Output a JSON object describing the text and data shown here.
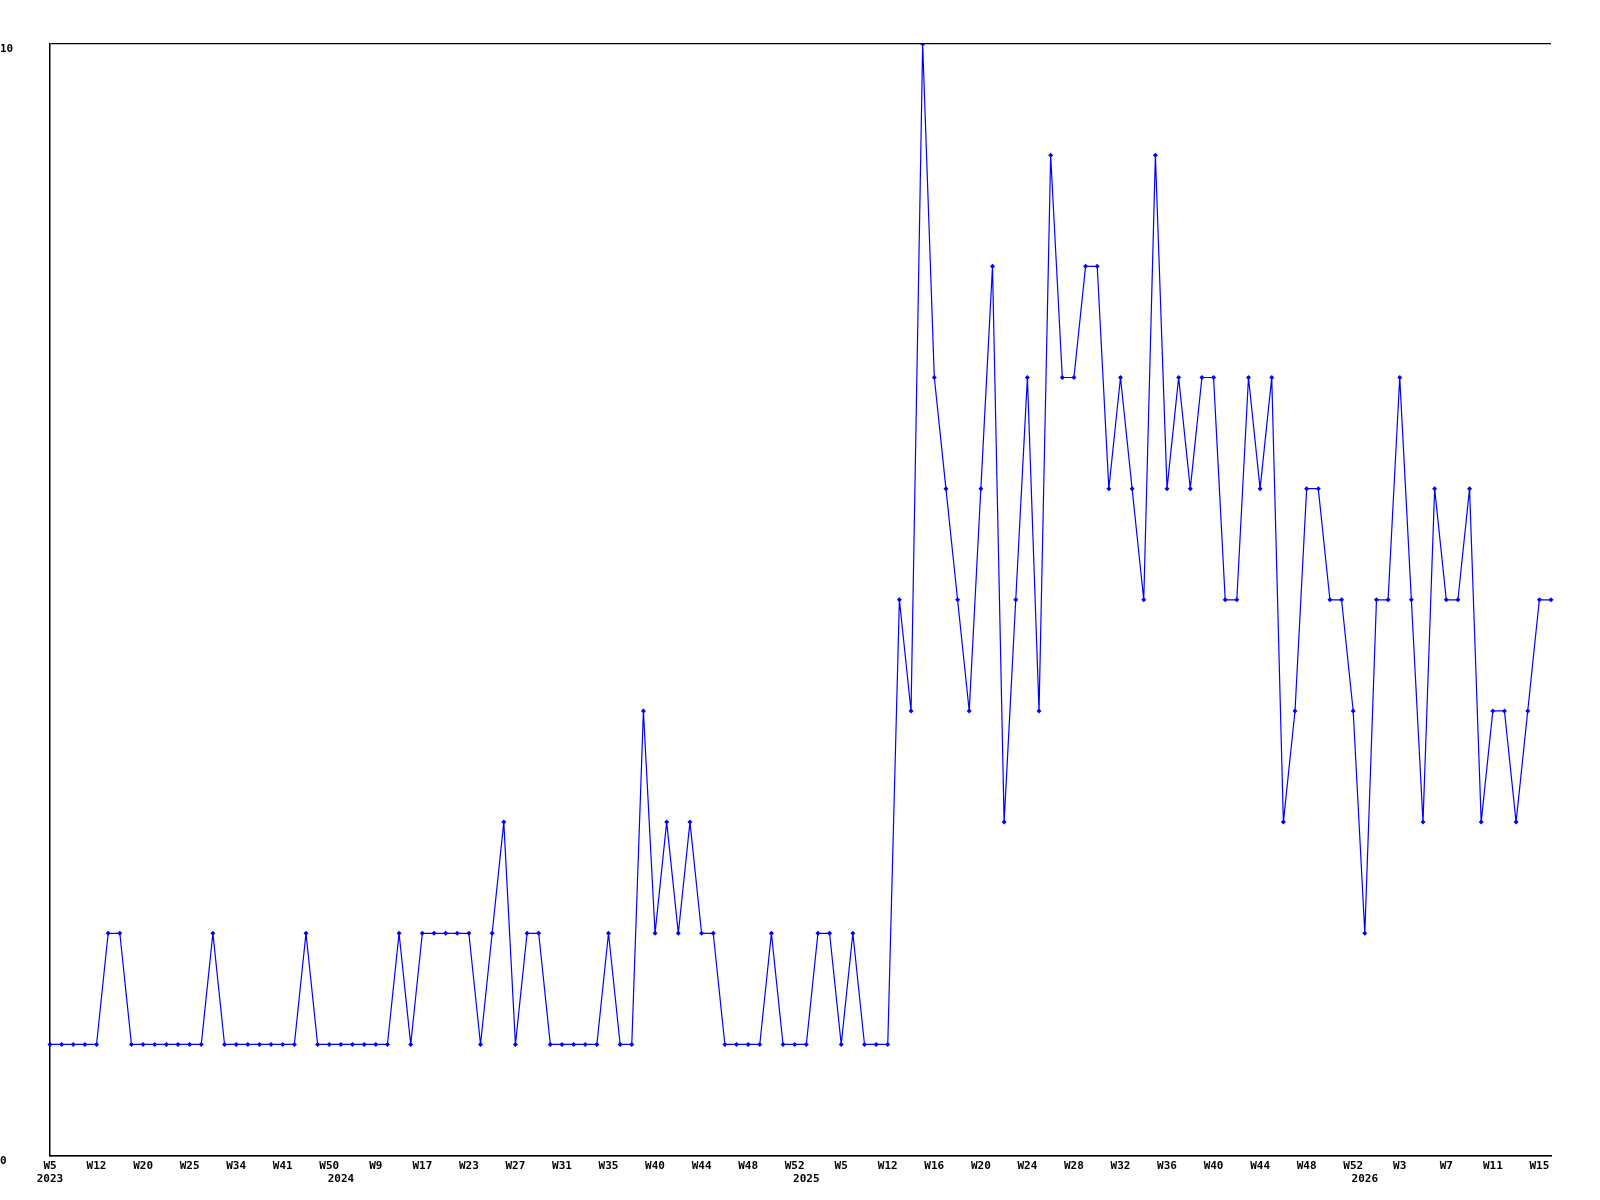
{
  "chart_data": {
    "type": "line",
    "categories": [
      "W5\n2023",
      null,
      null,
      null,
      "W12",
      null,
      null,
      null,
      "W20",
      null,
      null,
      null,
      "W25",
      null,
      null,
      null,
      "W34",
      null,
      null,
      null,
      "W41",
      null,
      null,
      null,
      "W50",
      "\n2024",
      null,
      null,
      "W9",
      null,
      null,
      null,
      "W17",
      null,
      null,
      null,
      "W23",
      null,
      null,
      null,
      "W27",
      null,
      null,
      null,
      "W31",
      null,
      null,
      null,
      "W35",
      null,
      null,
      null,
      "W40",
      null,
      null,
      null,
      "W44",
      null,
      null,
      null,
      "W48",
      null,
      null,
      null,
      "W52",
      "\n2025",
      null,
      null,
      "W5",
      null,
      null,
      null,
      "W12",
      null,
      null,
      null,
      "W16",
      null,
      null,
      null,
      "W20",
      null,
      null,
      null,
      "W24",
      null,
      null,
      null,
      "W28",
      null,
      null,
      null,
      "W32",
      null,
      null,
      null,
      "W36",
      null,
      null,
      null,
      "W40",
      null,
      null,
      null,
      "W44",
      null,
      null,
      null,
      "W48",
      null,
      null,
      null,
      "W52",
      "\n2026",
      null,
      null,
      "W3",
      null,
      null,
      null,
      "W7",
      null,
      null,
      null,
      "W11",
      null,
      null,
      null,
      "W15",
      null
    ],
    "series": [
      {
        "color": "#0000ff",
        "values": [
          1,
          1,
          1,
          1,
          1,
          2,
          2,
          1,
          1,
          1,
          1,
          1,
          1,
          1,
          2,
          1,
          1,
          1,
          1,
          1,
          1,
          1,
          2,
          1,
          1,
          1,
          1,
          1,
          1,
          1,
          2,
          1,
          2,
          2,
          2,
          2,
          2,
          1,
          2,
          3,
          1,
          2,
          2,
          1,
          1,
          1,
          1,
          1,
          2,
          1,
          1,
          4,
          2,
          3,
          2,
          3,
          2,
          2,
          1,
          1,
          1,
          1,
          2,
          1,
          1,
          1,
          2,
          2,
          1,
          2,
          1,
          1,
          1,
          5,
          4,
          10,
          7,
          6,
          5,
          4,
          6,
          8,
          3,
          5,
          7,
          4,
          9,
          7,
          7,
          8,
          8,
          6,
          7,
          6,
          5,
          9,
          6,
          7,
          6,
          7,
          7,
          5,
          5,
          7,
          6,
          7,
          3,
          4,
          6,
          6,
          5,
          5,
          4,
          2,
          5,
          5,
          7,
          5,
          3,
          6,
          5,
          5,
          6,
          3,
          4,
          4,
          3,
          4,
          5,
          5
        ]
      }
    ],
    "ylim": [
      0,
      10
    ],
    "yticks": [
      0,
      10
    ],
    "grid": "y",
    "legend": false,
    "marker": "diamond",
    "line_style": "solid"
  }
}
